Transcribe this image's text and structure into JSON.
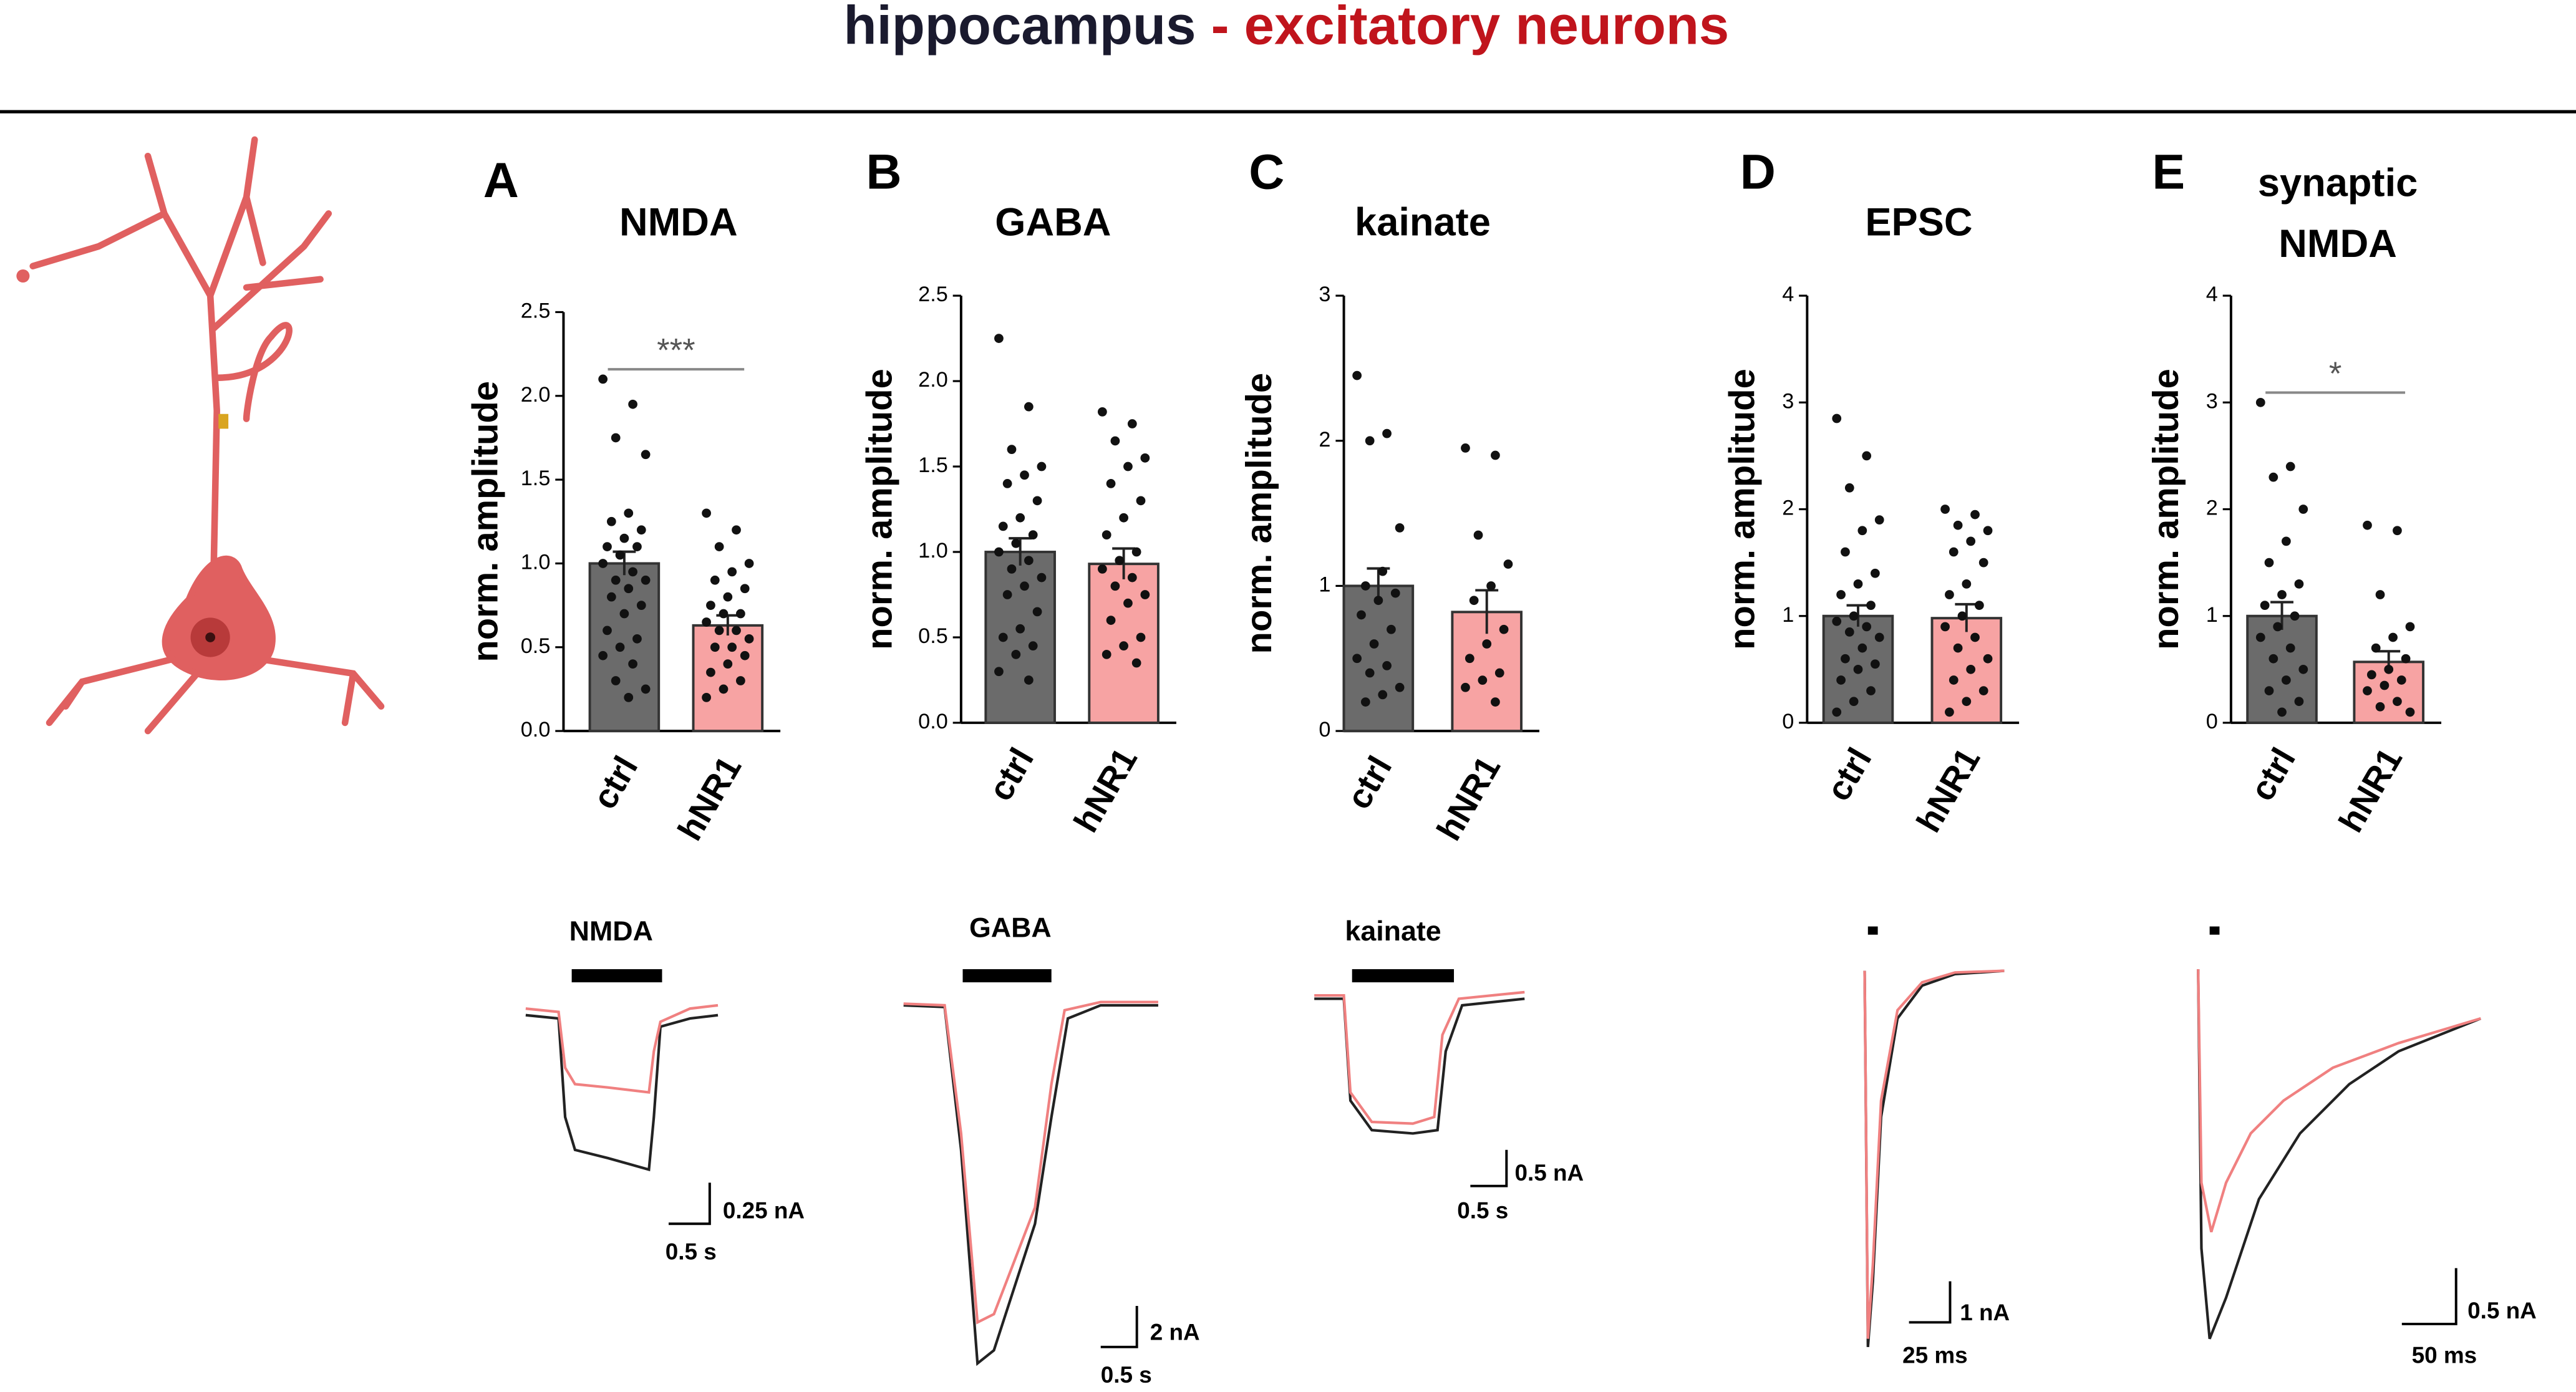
{
  "header": {
    "title_part1": "hippocampus",
    "title_part2": "- excitatory neurons"
  },
  "chart_data": [
    {
      "type": "bar",
      "panel": "A",
      "title": "NMDA",
      "y_label": "norm. amplitude",
      "categories": [
        "ctrl",
        "hNR1"
      ],
      "values": [
        1.0,
        0.63
      ],
      "errors": [
        0.07,
        0.06
      ],
      "colors": [
        "#6b6b6b",
        "#f7a3a3"
      ],
      "points": [
        [
          2.1,
          1.95,
          1.75,
          1.65,
          1.3,
          1.25,
          1.2,
          1.15,
          1.1,
          1.1,
          1.05,
          1.0,
          0.95,
          0.9,
          0.9,
          0.85,
          0.8,
          0.75,
          0.7,
          0.6,
          0.55,
          0.5,
          0.45,
          0.4,
          0.3,
          0.25,
          0.2
        ],
        [
          1.3,
          1.2,
          1.1,
          1.0,
          0.95,
          0.9,
          0.85,
          0.8,
          0.75,
          0.7,
          0.7,
          0.65,
          0.6,
          0.6,
          0.55,
          0.5,
          0.5,
          0.45,
          0.4,
          0.35,
          0.3,
          0.25,
          0.2
        ]
      ],
      "ylim": [
        0,
        2.5
      ],
      "yticks": [
        {
          "value": 0,
          "label": "0.0"
        },
        {
          "value": 0.5,
          "label": "0.5"
        },
        {
          "value": 1,
          "label": "1.0"
        },
        {
          "value": 1.5,
          "label": "1.5"
        },
        {
          "value": 2,
          "label": "2.0"
        },
        {
          "value": 2.5,
          "label": "2.5"
        }
      ],
      "annotation": "***"
    },
    {
      "type": "bar",
      "panel": "B",
      "title": "GABA",
      "y_label": "norm. amplitude",
      "categories": [
        "ctrl",
        "hNR1"
      ],
      "values": [
        1.0,
        0.93
      ],
      "errors": [
        0.08,
        0.09
      ],
      "colors": [
        "#6b6b6b",
        "#f7a3a3"
      ],
      "points": [
        [
          2.25,
          1.85,
          1.6,
          1.5,
          1.45,
          1.4,
          1.3,
          1.2,
          1.15,
          1.1,
          1.05,
          1.0,
          0.95,
          0.9,
          0.85,
          0.8,
          0.75,
          0.65,
          0.55,
          0.5,
          0.45,
          0.4,
          0.3,
          0.25
        ],
        [
          1.82,
          1.75,
          1.65,
          1.55,
          1.5,
          1.4,
          1.3,
          1.2,
          1.1,
          1.0,
          0.95,
          0.9,
          0.85,
          0.8,
          0.75,
          0.7,
          0.6,
          0.5,
          0.45,
          0.4,
          0.35
        ]
      ],
      "ylim": [
        0,
        2.5
      ],
      "yticks": [
        {
          "value": 0,
          "label": "0.0"
        },
        {
          "value": 0.5,
          "label": "0.5"
        },
        {
          "value": 1,
          "label": "1.0"
        },
        {
          "value": 1.5,
          "label": "1.5"
        },
        {
          "value": 2,
          "label": "2.0"
        },
        {
          "value": 2.5,
          "label": "2.5"
        }
      ]
    },
    {
      "type": "bar",
      "panel": "C",
      "title": "kainate",
      "y_label": "norm. amplitude",
      "categories": [
        "ctrl",
        "hNR1"
      ],
      "values": [
        1.0,
        0.82
      ],
      "errors": [
        0.12,
        0.15
      ],
      "colors": [
        "#6b6b6b",
        "#f7a3a3"
      ],
      "points": [
        [
          2.45,
          2.05,
          2.0,
          1.4,
          1.1,
          1.0,
          0.95,
          0.9,
          0.8,
          0.7,
          0.6,
          0.5,
          0.45,
          0.4,
          0.3,
          0.25,
          0.2
        ],
        [
          1.95,
          1.9,
          1.35,
          1.15,
          1.0,
          0.9,
          0.7,
          0.6,
          0.5,
          0.4,
          0.35,
          0.3,
          0.2
        ]
      ],
      "ylim": [
        0,
        3
      ],
      "yticks": [
        0,
        1,
        2,
        3
      ]
    },
    {
      "type": "bar",
      "panel": "D",
      "title": "EPSC",
      "y_label": "norm. amplitude",
      "categories": [
        "ctrl",
        "hNR1"
      ],
      "values": [
        1.0,
        0.98
      ],
      "errors": [
        0.1,
        0.13
      ],
      "colors": [
        "#6b6b6b",
        "#f7a3a3"
      ],
      "points": [
        [
          2.85,
          2.5,
          2.2,
          1.9,
          1.8,
          1.6,
          1.4,
          1.3,
          1.2,
          1.1,
          1.0,
          0.95,
          0.9,
          0.85,
          0.8,
          0.7,
          0.6,
          0.55,
          0.5,
          0.4,
          0.3,
          0.2,
          0.1
        ],
        [
          2.0,
          1.95,
          1.85,
          1.8,
          1.7,
          1.6,
          1.5,
          1.3,
          1.2,
          1.1,
          1.0,
          0.9,
          0.8,
          0.7,
          0.6,
          0.5,
          0.4,
          0.3,
          0.2,
          0.1
        ]
      ],
      "ylim": [
        0,
        4
      ],
      "yticks": [
        0,
        1,
        2,
        3,
        4
      ]
    },
    {
      "type": "bar",
      "panel": "E",
      "title": [
        "synaptic",
        "NMDA"
      ],
      "y_label": "norm. amplitude",
      "categories": [
        "ctrl",
        "hNR1"
      ],
      "values": [
        1.0,
        0.57
      ],
      "errors": [
        0.13,
        0.1
      ],
      "colors": [
        "#6b6b6b",
        "#f7a3a3"
      ],
      "points": [
        [
          3.0,
          2.4,
          2.3,
          2.0,
          1.7,
          1.5,
          1.3,
          1.2,
          1.1,
          1.0,
          0.9,
          0.8,
          0.7,
          0.6,
          0.5,
          0.4,
          0.3,
          0.2,
          0.1
        ],
        [
          1.85,
          1.8,
          1.2,
          0.9,
          0.8,
          0.7,
          0.6,
          0.5,
          0.45,
          0.4,
          0.35,
          0.3,
          0.2,
          0.15,
          0.1
        ]
      ],
      "ylim": [
        0,
        4
      ],
      "yticks": [
        0,
        1,
        2,
        3,
        4
      ],
      "annotation": "*"
    }
  ],
  "traces": [
    {
      "label": "NMDA",
      "scale_y": "0.25  nA",
      "scale_x": "0.5 s"
    },
    {
      "label": "GABA",
      "scale_y": "2 nA",
      "scale_x": "0.5 s"
    },
    {
      "label": "kainate",
      "scale_y": "0.5 nA",
      "scale_x": "0.5 s"
    },
    {
      "scale_y": "1 nA",
      "scale_x": "25 ms"
    },
    {
      "scale_y": "0.5 nA",
      "scale_x": "50 ms"
    }
  ]
}
